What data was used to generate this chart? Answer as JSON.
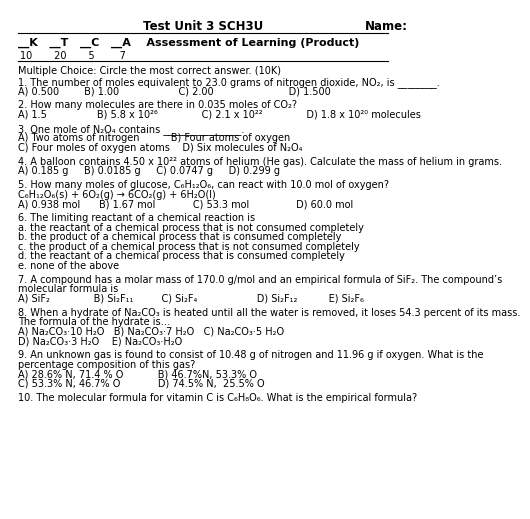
{
  "bg_color": "#ffffff",
  "text_color": "#000000",
  "title_left": "Test Unit 3 SCH3U",
  "title_right": "Name:",
  "header": "__K   __T   __C   __A    Assessment of Learning (Product)",
  "scores": "10       20       5        7",
  "mc_intro": "Multiple Choice: Circle the most correct answer. (10K)",
  "lines": [
    {
      "text": "1. The number of moles equivalent to 23.0 grams of nitrogen dioxide, NO₂, is ________.",
      "indent": 0
    },
    {
      "text": "A) 0.500        B) 1.00                   C) 2.00                        D) 1.500",
      "indent": 0
    },
    {
      "text": "",
      "indent": 0
    },
    {
      "text": "2. How many molecules are there in 0.035 moles of CO₂?",
      "indent": 0
    },
    {
      "text": "A) 1.5                B) 5.8 x 10²⁶              C) 2.1 x 10²²              D) 1.8 x 10²⁰ molecules",
      "indent": 0
    },
    {
      "text": "",
      "indent": 0
    },
    {
      "text": "3. One mole of N₂O₄ contains ________________.",
      "indent": 0
    },
    {
      "text": "A) Two atoms of nitrogen          B) Four atoms of oxygen",
      "indent": 0
    },
    {
      "text": "C) Four moles of oxygen atoms    D) Six molecules of N₂O₄",
      "indent": 0
    },
    {
      "text": "",
      "indent": 0
    },
    {
      "text": "4. A balloon contains 4.50 x 10²² atoms of helium (He gas). Calculate the mass of helium in grams.",
      "indent": 0
    },
    {
      "text": "A) 0.185 g     B) 0.0185 g     C) 0.0747 g     D) 0.299 g",
      "indent": 0
    },
    {
      "text": "",
      "indent": 0
    },
    {
      "text": "5. How many moles of glucose, C₆H₁₂O₆, can react with 10.0 mol of oxygen?",
      "indent": 0
    },
    {
      "text": "C₆H₁₂O₆(s) + 6O₂(g) → 6CO₂(g) + 6H₂O(l)",
      "indent": 0
    },
    {
      "text": "A) 0.938 mol      B) 1.67 mol            C) 53.3 mol               D) 60.0 mol",
      "indent": 0
    },
    {
      "text": "",
      "indent": 0
    },
    {
      "text": "6. The limiting reactant of a chemical reaction is",
      "indent": 0
    },
    {
      "text": "a. the reactant of a chemical process that is not consumed completely",
      "indent": 0
    },
    {
      "text": "b. the product of a chemical process that is consumed completely",
      "indent": 0
    },
    {
      "text": "c. the product of a chemical process that is not consumed completely",
      "indent": 0
    },
    {
      "text": "d. the reactant of a chemical process that is consumed completely",
      "indent": 0
    },
    {
      "text": "e. none of the above",
      "indent": 0
    },
    {
      "text": "",
      "indent": 0
    },
    {
      "text": "7. A compound has a molar mass of 170.0 g/mol and an empirical formula of SiF₂. The compound’s",
      "indent": 0
    },
    {
      "text": "molecular formula is",
      "indent": 0
    },
    {
      "text": "A) SiF₂              B) Si₂F₁₁         C) Si₂F₄                   D) Si₂F₁₂          E) Si₂F₆",
      "indent": 0
    },
    {
      "text": "",
      "indent": 0
    },
    {
      "text": "8. When a hydrate of Na₂CO₃ is heated until all the water is removed, it loses 54.3 percent of its mass.",
      "indent": 0
    },
    {
      "text": "The formula of the hydrate is…",
      "indent": 0
    },
    {
      "text": "A) Na₂CO₃·10 H₂O   B) Na₂CO₃·7 H₂O   C) Na₂CO₃·5 H₂O",
      "indent": 0
    },
    {
      "text": "D) Na₂CO₃·3 H₂O    E) Na₂CO₃·H₂O",
      "indent": 0
    },
    {
      "text": "",
      "indent": 0
    },
    {
      "text": "9. An unknown gas is found to consist of 10.48 g of nitrogen and 11.96 g if oxygen. What is the",
      "indent": 0
    },
    {
      "text": "percentage composition of this gas?",
      "indent": 0
    },
    {
      "text": "A) 28.6% N, 71.4 % O           B) 46.7%N, 53.3% O",
      "indent": 0
    },
    {
      "text": "C) 53.3% N, 46.7% O            D) 74.5% N,  25.5% O",
      "indent": 0
    },
    {
      "text": "",
      "indent": 0
    },
    {
      "text": "10. The molecular formula for vitamin C is C₆H₈O₆. What is the empirical formula?",
      "indent": 0
    }
  ]
}
